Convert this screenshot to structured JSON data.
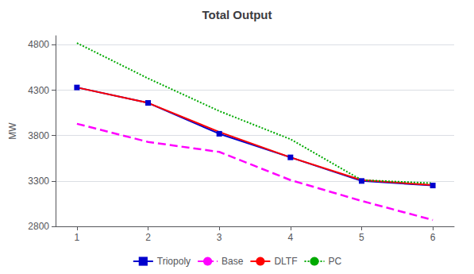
{
  "chart_data": {
    "type": "line",
    "title": "Total Output",
    "ylabel": "MW",
    "x": [
      1,
      2,
      3,
      4,
      5,
      6
    ],
    "series": [
      {
        "name": "Triopoly",
        "color": "#0000CD",
        "marker": "square",
        "line_style": "solid",
        "values": [
          4330,
          4160,
          3820,
          3560,
          3300,
          3250
        ]
      },
      {
        "name": "Base",
        "color": "#FF00FF",
        "line_style": "dashed",
        "values": [
          3930,
          3730,
          3620,
          3310,
          3080,
          2870
        ]
      },
      {
        "name": "DLTF",
        "color": "#FF0000",
        "line_style": "solid",
        "values": [
          4330,
          4160,
          3840,
          3560,
          3310,
          3255
        ]
      },
      {
        "name": "PC",
        "color": "#00AA00",
        "line_style": "dotted",
        "values": [
          4820,
          4430,
          4070,
          3760,
          3310,
          3275
        ]
      }
    ],
    "xlim": [
      0.7,
      6.3
    ],
    "xticks": [
      1,
      2,
      3,
      4,
      5,
      6
    ],
    "ylim": [
      2800,
      4900
    ],
    "yticks": [
      2800,
      3300,
      3800,
      4300,
      4800
    ],
    "grid": true,
    "legend": "bottom"
  }
}
